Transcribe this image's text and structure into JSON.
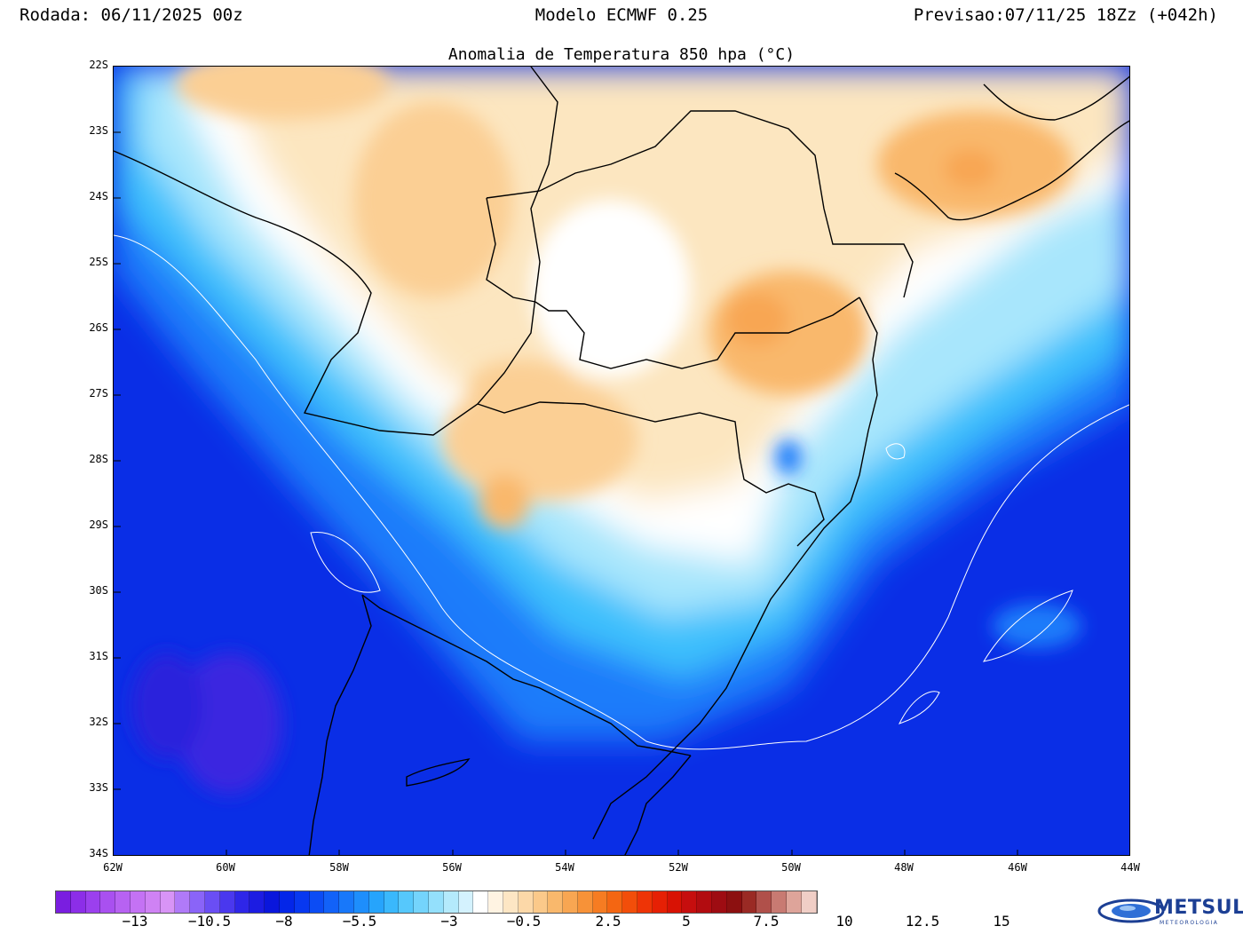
{
  "header": {
    "run": "Rodada: 06/11/2025 00z",
    "model": "Modelo ECMWF 0.25",
    "forecast": "Previsao:07/11/25 18Zz (+042h)"
  },
  "map": {
    "title": "Anomalia de Temperatura 850 hpa (°C)",
    "lat_labels": [
      "22S",
      "23S",
      "24S",
      "25S",
      "26S",
      "27S",
      "28S",
      "29S",
      "30S",
      "31S",
      "32S",
      "33S",
      "34S"
    ],
    "lon_labels": [
      "62W",
      "60W",
      "58W",
      "56W",
      "54W",
      "52W",
      "50W",
      "48W",
      "46W",
      "44W"
    ]
  },
  "colorbar": {
    "labels": [
      "-13",
      "-10.5",
      "-8",
      "-5.5",
      "-3",
      "-0.5",
      "2.5",
      "5",
      "7.5",
      "10",
      "12.5",
      "15"
    ],
    "colors": [
      "#7a1ee0",
      "#8c2ee8",
      "#9b40ee",
      "#a950f0",
      "#b762f2",
      "#c472f4",
      "#cf82f4",
      "#d894f6",
      "#b07af8",
      "#8a64f8",
      "#6a4ef4",
      "#4a38ee",
      "#2e26e8",
      "#1c1ce2",
      "#0a16dc",
      "#0426e8",
      "#0838f0",
      "#0c4cf4",
      "#1262f8",
      "#1878fa",
      "#1e8efc",
      "#26a4fc",
      "#3ab8fc",
      "#56c8fc",
      "#74d4fc",
      "#94e0fc",
      "#b4eafc",
      "#d4f2fe",
      "#ffffff",
      "#fff3e2",
      "#fde6c4",
      "#fcd8a8",
      "#fbc98a",
      "#f9b86c",
      "#f8a652",
      "#f79238",
      "#f67c22",
      "#f46612",
      "#f24e0a",
      "#ee3406",
      "#e62004",
      "#d81204",
      "#c60e0e",
      "#b20c10",
      "#9e0c12",
      "#8c1010",
      "#9a2a24",
      "#b0504a",
      "#c87a72",
      "#dea49a",
      "#f0cec6"
    ]
  },
  "logo": {
    "name": "METSUL",
    "tagline": "METEOROLOGIA"
  }
}
